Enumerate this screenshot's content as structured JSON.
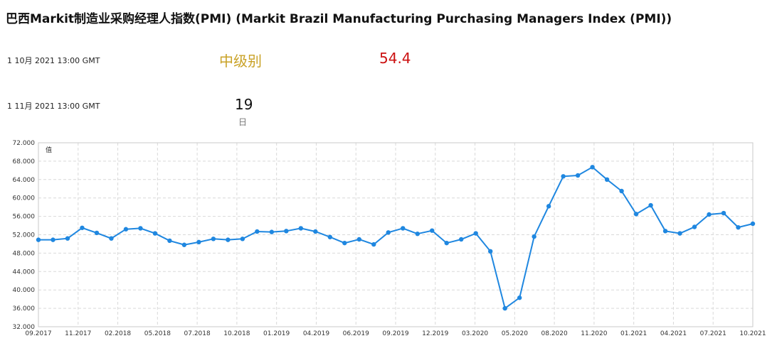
{
  "title": "巴西Markit制造业采购经理人指数(PMI) (Markit Brazil Manufacturing Purchasing Managers Index (PMI))",
  "latest": {
    "date": "1 10月 2021 13:00 GMT",
    "importance": "中级别",
    "actual": "54.4"
  },
  "next": {
    "date": "1 11月 2021 13:00 GMT",
    "countdown": "19",
    "countdown_unit": "日"
  },
  "colors": {
    "line": "#1f87e0",
    "importance": "#c9a227",
    "actual": "#cc1111",
    "grid": "#d9d9d9"
  },
  "chart_data": {
    "type": "line",
    "y_axis_label": "值",
    "ylim": [
      32,
      72
    ],
    "y_ticks": [
      "72.000",
      "68.000",
      "64.000",
      "60.000",
      "56.000",
      "52.000",
      "48.000",
      "44.000",
      "40.000",
      "36.000",
      "32.000"
    ],
    "x_tick_labels": [
      "09.2017",
      "11.2017",
      "02.2018",
      "05.2018",
      "07.2018",
      "10.2018",
      "01.2019",
      "04.2019",
      "06.2019",
      "09.2019",
      "12.2019",
      "03.2020",
      "05.2020",
      "08.2020",
      "11.2020",
      "01.2021",
      "04.2021",
      "07.2021",
      "10.2021"
    ],
    "grid": true,
    "series": [
      {
        "values": [
          50.9,
          50.9,
          51.2,
          53.5,
          52.4,
          51.2,
          53.2,
          53.4,
          52.3,
          50.7,
          49.8,
          50.4,
          51.1,
          50.9,
          51.1,
          52.7,
          52.6,
          52.8,
          53.4,
          52.7,
          51.5,
          50.2,
          51.0,
          49.9,
          52.5,
          53.4,
          52.2,
          52.9,
          50.2,
          51.0,
          52.3,
          48.4,
          36.0,
          38.3,
          51.6,
          58.2,
          64.7,
          64.9,
          66.7,
          64.0,
          61.5,
          56.5,
          58.4,
          52.8,
          52.3,
          53.7,
          56.4,
          56.7,
          53.6,
          54.4
        ]
      }
    ]
  }
}
